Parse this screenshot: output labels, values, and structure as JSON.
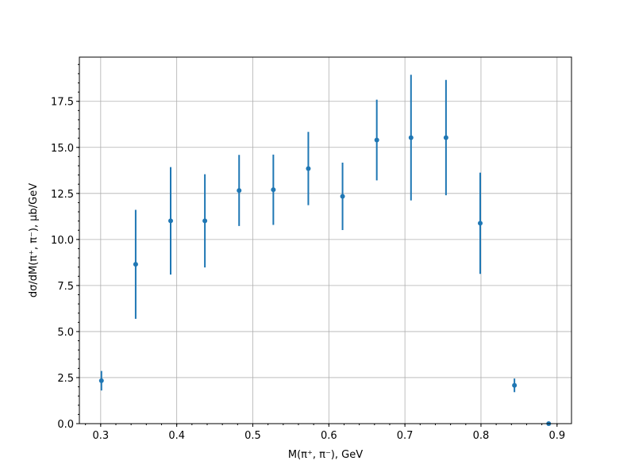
{
  "chart_data": {
    "type": "scatter",
    "title": "",
    "xlabel": "M(π⁺, π⁻), GeV",
    "ylabel": "dσ/dM(π⁺, π⁻), µb/GeV",
    "xlim": [
      0.272,
      0.919
    ],
    "ylim": [
      0,
      19.9
    ],
    "grid": true,
    "color": "#1f77b4",
    "x_ticks": [
      "0.3",
      "0.4",
      "0.5",
      "0.6",
      "0.7",
      "0.8",
      "0.9"
    ],
    "y_ticks": [
      "0.0",
      "2.5",
      "5.0",
      "7.5",
      "10.0",
      "12.5",
      "15.0",
      "17.5"
    ],
    "x": [
      0.301,
      0.346,
      0.392,
      0.437,
      0.482,
      0.527,
      0.573,
      0.618,
      0.663,
      0.708,
      0.754,
      0.799,
      0.844,
      0.889
    ],
    "y": [
      2.33,
      8.65,
      11.01,
      11.01,
      12.66,
      12.7,
      13.85,
      12.34,
      15.4,
      15.53,
      15.53,
      10.88,
      2.08,
      0.0
    ],
    "yerr": [
      0.53,
      2.96,
      2.92,
      2.53,
      1.93,
      1.91,
      1.99,
      1.83,
      2.19,
      3.41,
      3.13,
      2.75,
      0.37,
      0.0
    ]
  }
}
